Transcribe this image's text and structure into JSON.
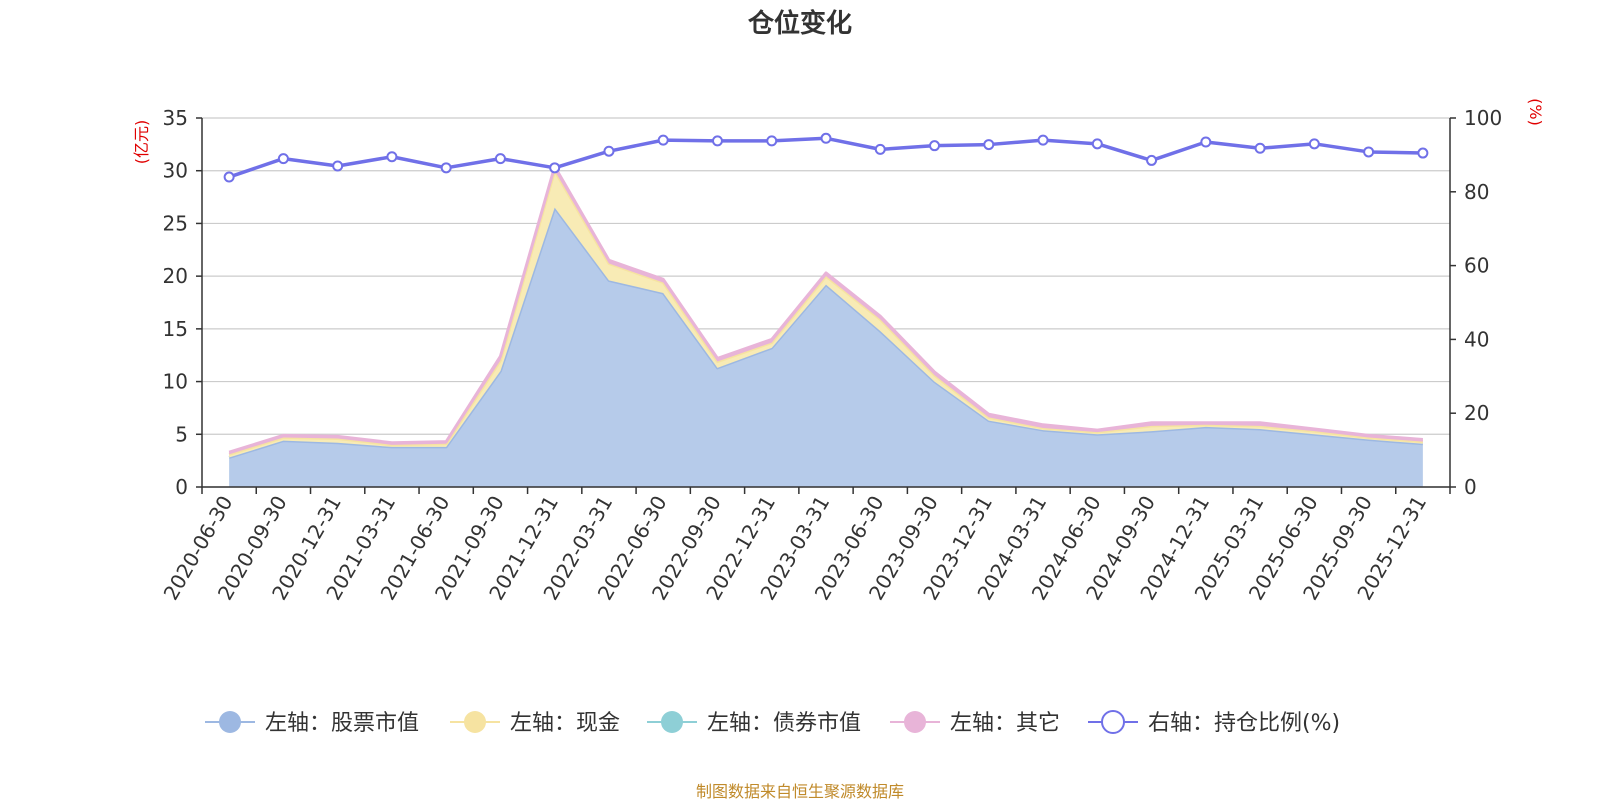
{
  "chart_data": {
    "type": "area",
    "title": "仓位变化",
    "left_axis_unit": "(亿元)",
    "right_axis_unit": "(%)",
    "ylim_left": [
      0,
      35
    ],
    "ylim_right": [
      0,
      100
    ],
    "left_ticks": [
      "0",
      "5",
      "10",
      "15",
      "20",
      "25",
      "30",
      "35"
    ],
    "right_ticks": [
      "0",
      "20",
      "40",
      "60",
      "80",
      "100"
    ],
    "categories": [
      "2020-06-30",
      "2020-09-30",
      "2020-12-31",
      "2021-03-31",
      "2021-06-30",
      "2021-09-30",
      "2021-12-31",
      "2022-03-31",
      "2022-06-30",
      "2022-09-30",
      "2022-12-31",
      "2023-03-31",
      "2023-06-30",
      "2023-09-30",
      "2023-12-31",
      "2024-03-31",
      "2024-06-30",
      "2024-09-30",
      "2024-12-31",
      "2025-03-31",
      "2025-06-30",
      "2025-09-30",
      "2025-12-31"
    ],
    "series": [
      {
        "name": "左轴：股票市值",
        "axis": "left",
        "color": "#9db8e2",
        "fill": "#b6cbea",
        "values": [
          2.8,
          4.4,
          4.2,
          3.8,
          3.8,
          11.0,
          26.5,
          19.6,
          18.4,
          11.3,
          13.2,
          19.2,
          14.8,
          10.0,
          6.3,
          5.4,
          5.0,
          5.3,
          5.7,
          5.5,
          5.0,
          4.5,
          4.1
        ]
      },
      {
        "name": "左轴：现金",
        "axis": "left",
        "color": "#f6e3a1",
        "fill": "#f8ebb5",
        "values": [
          0.3,
          0.3,
          0.4,
          0.2,
          0.3,
          1.0,
          3.5,
          1.6,
          1.0,
          0.6,
          0.5,
          0.8,
          1.1,
          0.6,
          0.3,
          0.2,
          0.2,
          0.5,
          0.2,
          0.3,
          0.3,
          0.2,
          0.2
        ]
      },
      {
        "name": "左轴：债券市值",
        "axis": "left",
        "color": "#8ecfd6",
        "fill": "#8ecfd6",
        "values": [
          0,
          0,
          0,
          0,
          0,
          0,
          0,
          0,
          0,
          0,
          0,
          0,
          0,
          0,
          0,
          0,
          0,
          0,
          0,
          0,
          0,
          0,
          0
        ]
      },
      {
        "name": "左轴：其它",
        "axis": "left",
        "color": "#e8b4d8",
        "fill": "#e8b4d8",
        "values": [
          0.2,
          0.2,
          0.2,
          0.2,
          0.2,
          0.4,
          0.4,
          0.3,
          0.3,
          0.3,
          0.3,
          0.3,
          0.3,
          0.3,
          0.3,
          0.3,
          0.2,
          0.3,
          0.2,
          0.3,
          0.2,
          0.2,
          0.2
        ]
      },
      {
        "name": "右轴：持仓比例(%)",
        "axis": "right",
        "color": "#7070e8",
        "fill": "none",
        "values": [
          84,
          89,
          87,
          89.5,
          86.5,
          89,
          86.5,
          91,
          94,
          93.8,
          93.8,
          94.5,
          91.5,
          92.5,
          92.8,
          94,
          93,
          88.5,
          93.5,
          91.8,
          93,
          90.8,
          90.5
        ]
      }
    ]
  },
  "legend": [
    {
      "label": "左轴：股票市值",
      "color": "#9db8e2",
      "hollow": false
    },
    {
      "label": "左轴：现金",
      "color": "#f6e3a1",
      "hollow": false
    },
    {
      "label": "左轴：债券市值",
      "color": "#8ecfd6",
      "hollow": false
    },
    {
      "label": "左轴：其它",
      "color": "#e8b4d8",
      "hollow": false
    },
    {
      "label": "右轴：持仓比例(%)",
      "color": "#7070e8",
      "hollow": true
    }
  ],
  "source": "制图数据来自恒生聚源数据库"
}
